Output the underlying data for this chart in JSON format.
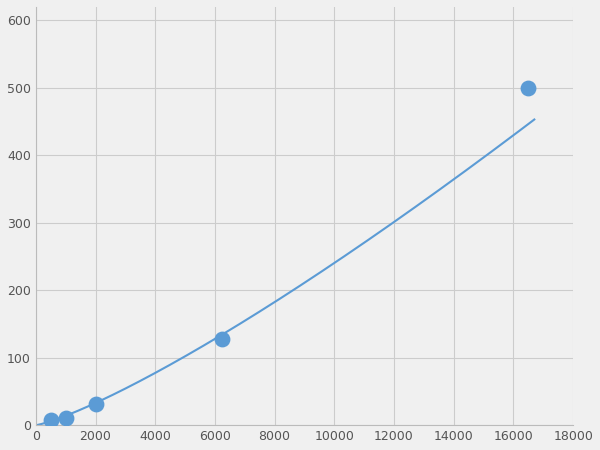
{
  "data_points_x": [
    500,
    1000,
    2000,
    6250,
    16500
  ],
  "data_points_y": [
    8,
    10,
    32,
    128,
    500
  ],
  "line_color": "#5b9bd5",
  "marker_color": "#5b9bd5",
  "marker_size": 6,
  "line_width": 1.5,
  "xlim": [
    0,
    18000
  ],
  "ylim": [
    0,
    620
  ],
  "xticks": [
    0,
    2000,
    4000,
    6000,
    8000,
    10000,
    12000,
    14000,
    16000,
    18000
  ],
  "yticks": [
    0,
    100,
    200,
    300,
    400,
    500,
    600
  ],
  "grid_color": "#cccccc",
  "figure_background": "#f0f0f0"
}
